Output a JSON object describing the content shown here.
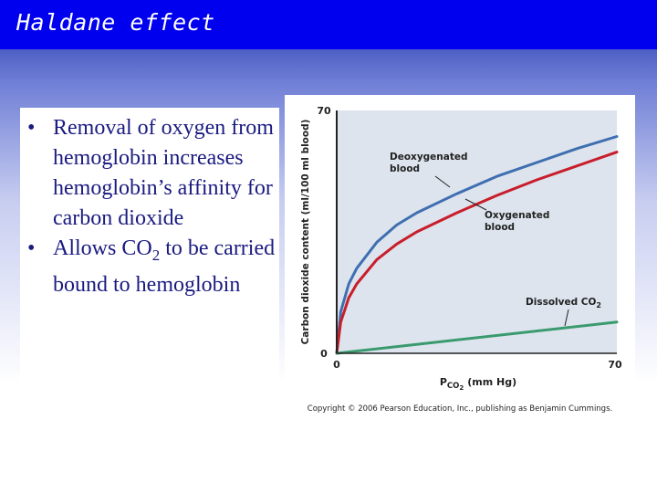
{
  "slide": {
    "title": "Haldane effect",
    "bullet_marker": "•",
    "bullets": [
      {
        "text": "Removal of oxygen from hemoglobin increases hemoglobin’s affinity for carbon dioxide"
      },
      {
        "pre": "Allows CO",
        "sub": "2",
        "post": " to be carried bound to hemoglobin"
      }
    ]
  },
  "chart_data": {
    "type": "line",
    "ylabel": "Carbon dioxide content (ml/100 ml blood)",
    "xlabel_main": "P",
    "xlabel_sub": "CO",
    "xlabel_subsub": "2",
    "xlabel_units": "(mm Hg)",
    "xlim": [
      0,
      70
    ],
    "ylim": [
      0,
      70
    ],
    "x_ticks": [
      "0",
      "70"
    ],
    "y_ticks": [
      "0",
      "70"
    ],
    "colors": {
      "deoxygenated": "#3f6fb0",
      "oxygenated": "#c81e2a",
      "dissolved": "#3a9a6e",
      "plot_bg": "#dde4ee"
    },
    "series": [
      {
        "name": "Deoxygenated blood",
        "label_lines": [
          "Deoxygenated",
          "blood"
        ],
        "color": "#3f6fb0",
        "x": [
          0,
          1,
          3,
          5,
          10,
          15,
          20,
          30,
          40,
          50,
          60,
          70
        ],
        "y": [
          0,
          12,
          20,
          24.5,
          32,
          37,
          40.5,
          46,
          51,
          55,
          59,
          62.5
        ]
      },
      {
        "name": "Oxygenated blood",
        "label_lines": [
          "Oxygenated",
          "blood"
        ],
        "color": "#c81e2a",
        "x": [
          0,
          1,
          3,
          5,
          10,
          15,
          20,
          30,
          40,
          50,
          60,
          70
        ],
        "y": [
          0,
          9,
          16,
          20,
          27,
          31.5,
          35,
          40.5,
          45.5,
          50,
          54,
          58
        ]
      },
      {
        "name": "Dissolved CO2",
        "label_main": "Dissolved CO",
        "label_sub": "2",
        "color": "#3a9a6e",
        "x": [
          0,
          70
        ],
        "y": [
          0,
          9
        ]
      }
    ],
    "caption": "Copyright © 2006 Pearson Education, Inc., publishing as Benjamin Cummings."
  }
}
